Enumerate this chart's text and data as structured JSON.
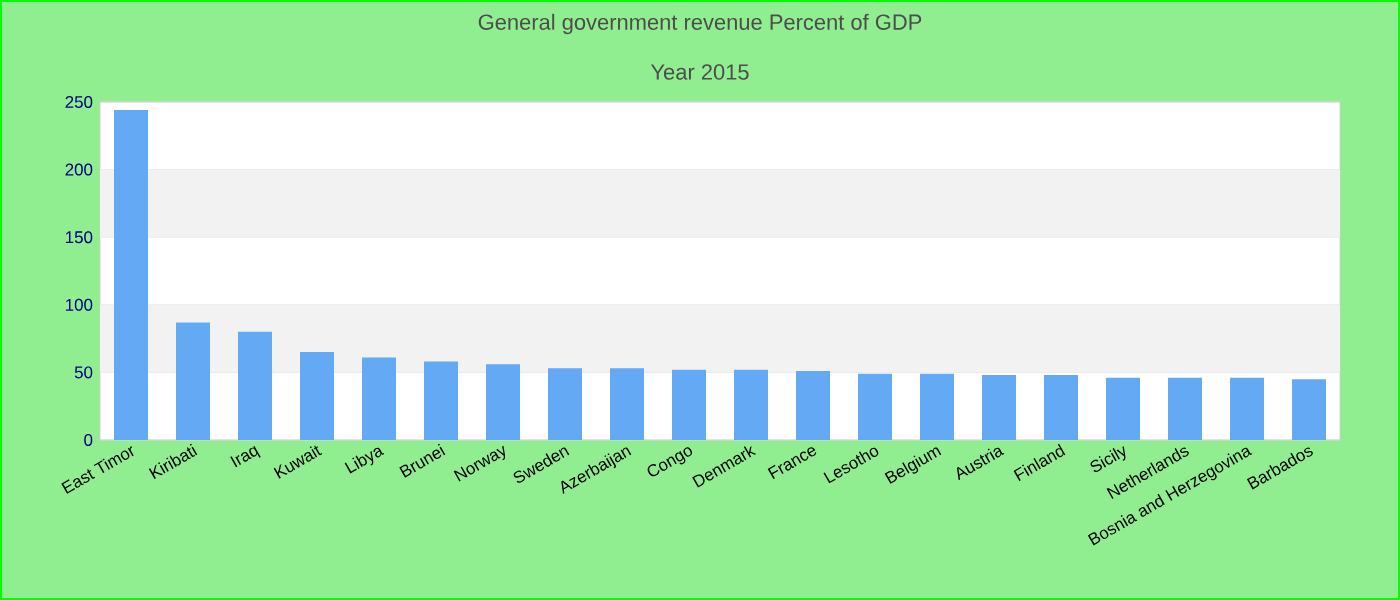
{
  "chart_data": {
    "type": "bar",
    "title": "General government revenue  Percent of GDP",
    "subtitle": "Year 2015",
    "categories": [
      "East Timor",
      "Kiribati",
      "Iraq",
      "Kuwait",
      "Libya",
      "Brunei",
      "Norway",
      "Sweden",
      "Azerbaijan",
      "Congo",
      "Denmark",
      "France",
      "Lesotho",
      "Belgium",
      "Austria",
      "Finland",
      "Sicily",
      "Netherlands",
      "Bosnia and Herzegovina",
      "Barbados"
    ],
    "values": [
      244,
      87,
      80,
      65,
      61,
      58,
      56,
      53,
      53,
      52,
      52,
      51,
      49,
      49,
      48,
      48,
      46,
      46,
      46,
      45
    ],
    "color": "#63a9f4",
    "ylim": [
      0,
      250
    ],
    "yticks": [
      0,
      50,
      100,
      150,
      200,
      250
    ],
    "grid": "y"
  }
}
